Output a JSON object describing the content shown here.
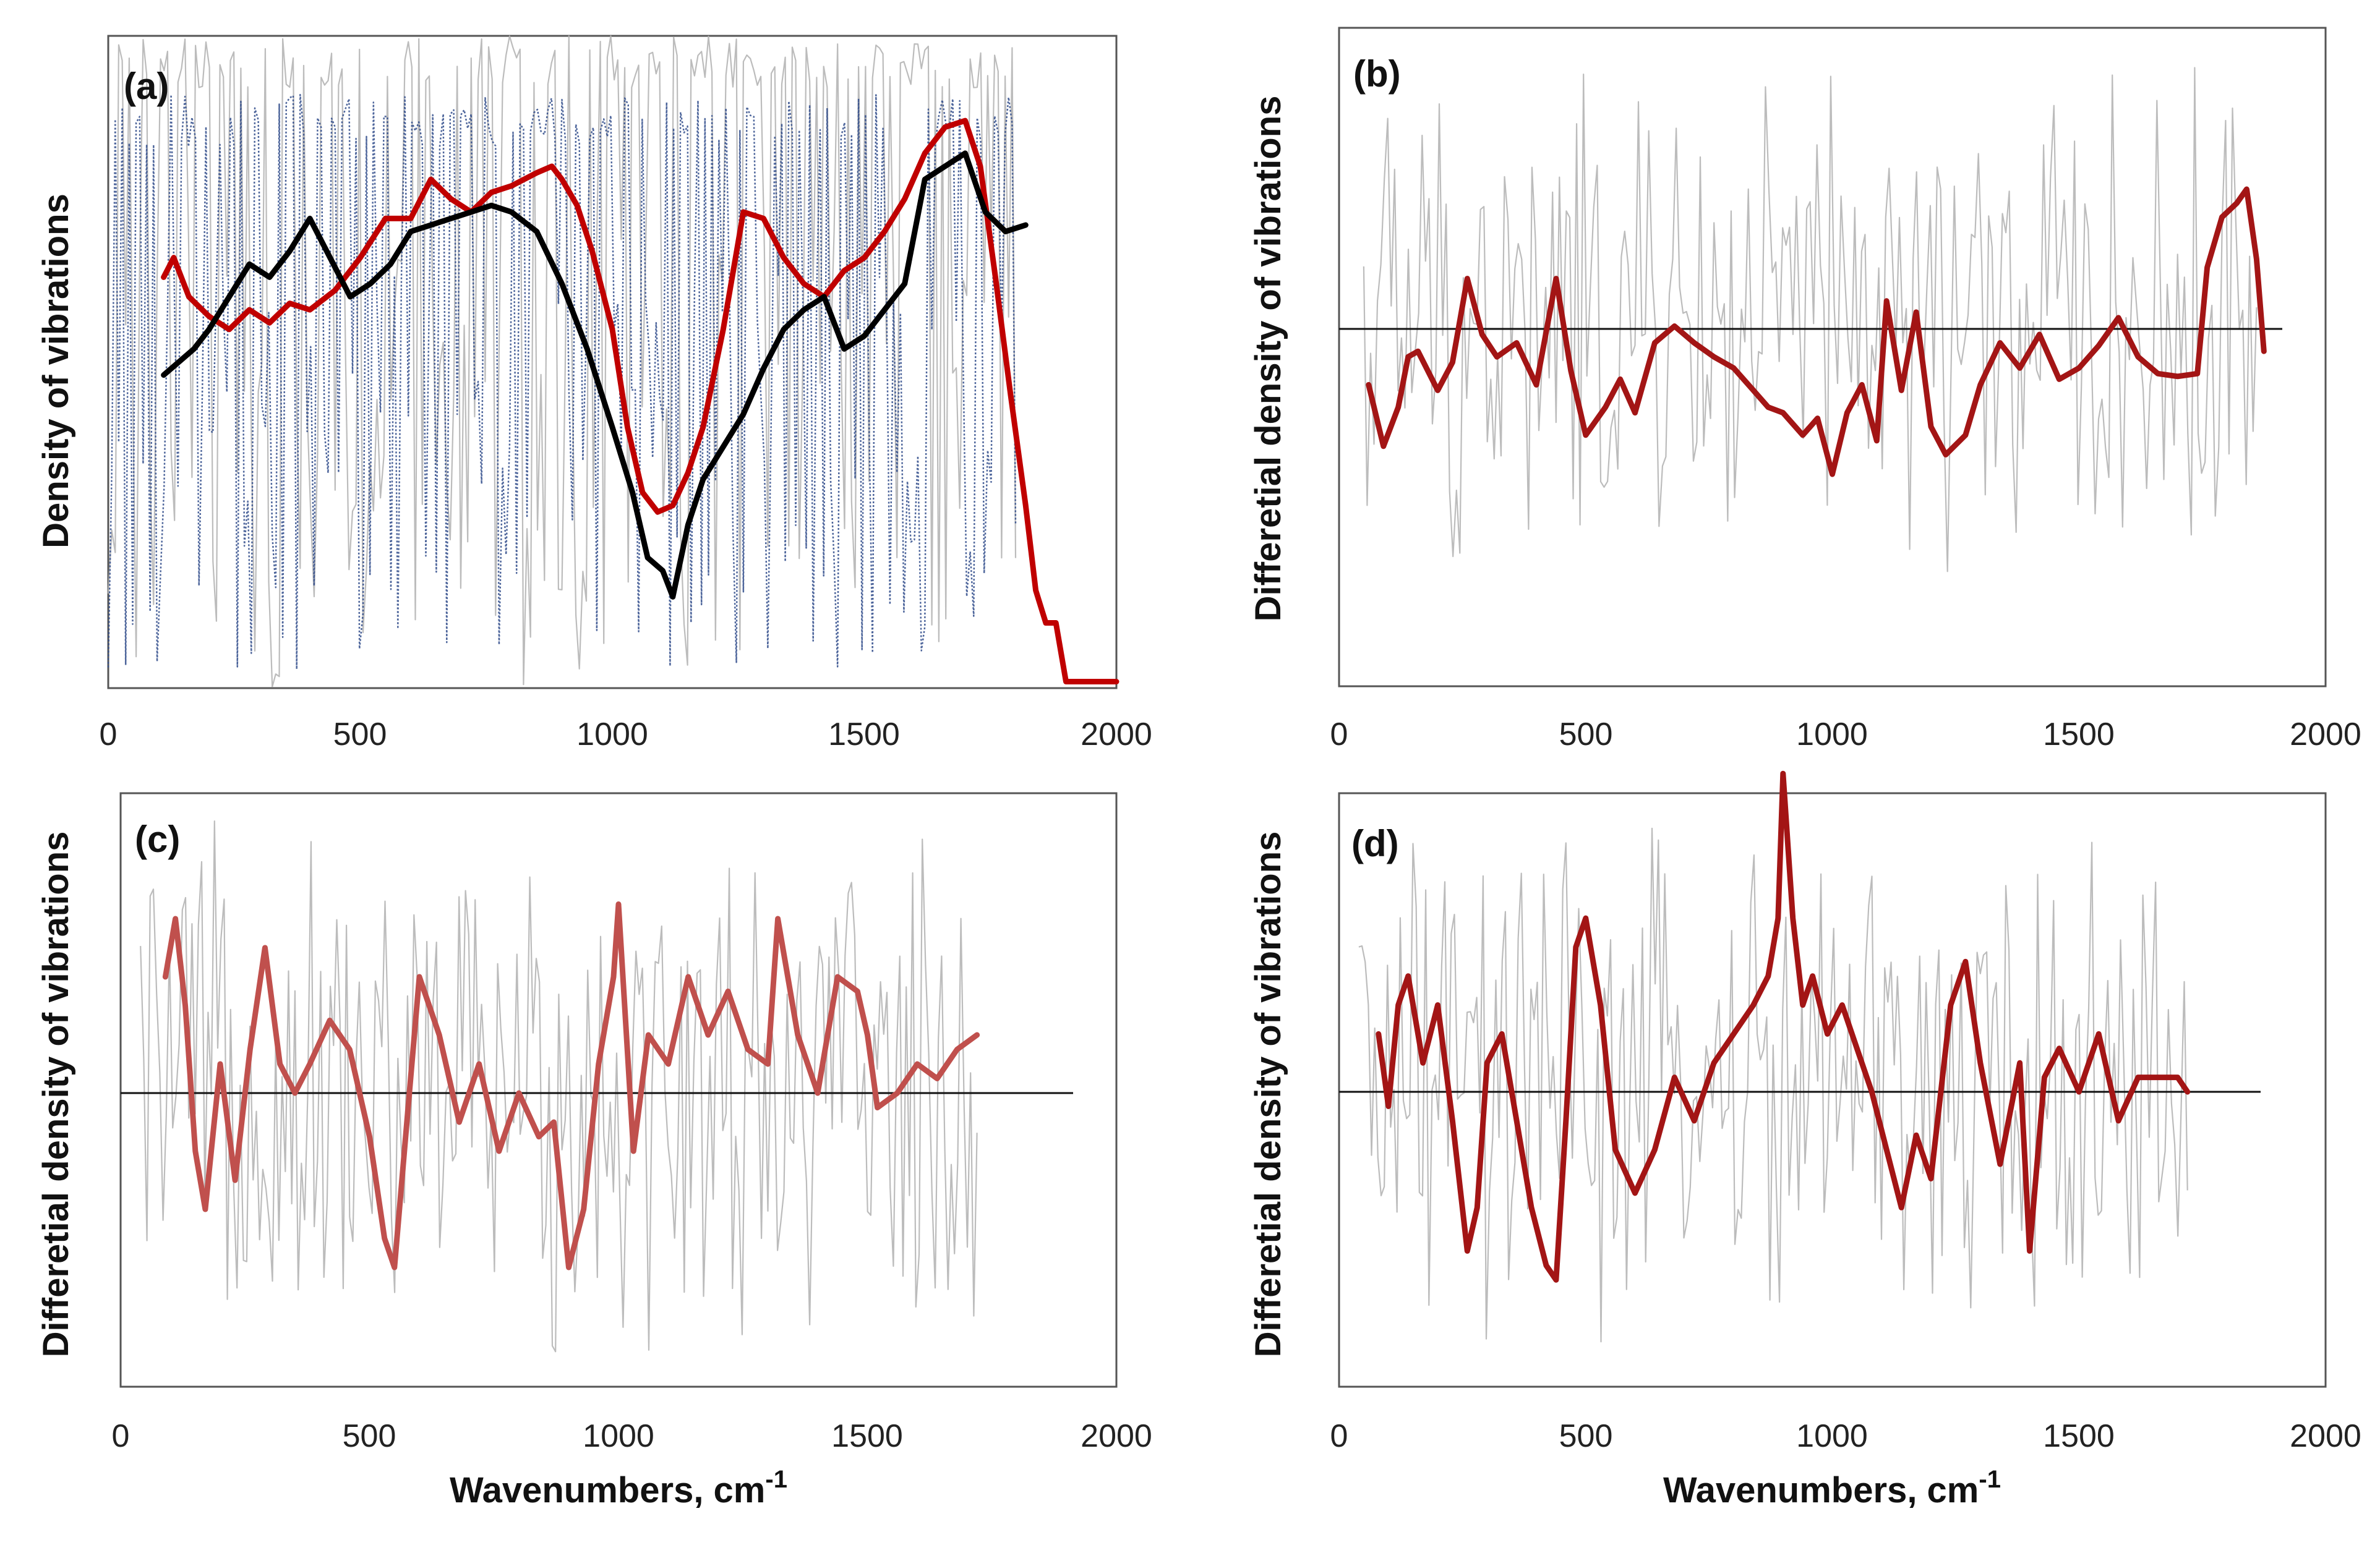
{
  "figure": {
    "panels": [
      {
        "id": "a",
        "label": "(a)",
        "ylabel": "Density of vibrations",
        "xlabel": ""
      },
      {
        "id": "b",
        "label": "(b)",
        "ylabel": "Differetial density of vibrations",
        "xlabel": ""
      },
      {
        "id": "c",
        "label": "(c)",
        "ylabel": "Differetial density of vibrations",
        "xlabel": "Wavenumbers, cm"
      },
      {
        "id": "d",
        "label": "(d)",
        "ylabel": "Differetial density of vibrations",
        "xlabel": "Wavenumbers, cm"
      }
    ],
    "xlabel_superscript": "-1",
    "x_ticks": [
      "0",
      "500",
      "1000",
      "1500",
      "2000"
    ]
  },
  "chart_data": [
    {
      "panel": "a",
      "type": "line",
      "title": "",
      "xlabel": "",
      "ylabel": "Density of vibrations",
      "xlim": [
        0,
        2000
      ],
      "ylim": [
        0,
        1
      ],
      "grid": false,
      "legend": "none",
      "background_spectra": [
        {
          "color": "#b5b5b5",
          "style": "solid",
          "x_range": [
            0,
            1800
          ],
          "y_range": [
            0,
            1
          ]
        },
        {
          "color": "#2e4a8a",
          "style": "dotted",
          "x_range": [
            0,
            1800
          ],
          "y_range": [
            0.02,
            0.91
          ]
        }
      ],
      "series": [
        {
          "color": "#c00000",
          "x": [
            110,
            130,
            160,
            200,
            240,
            280,
            320,
            360,
            400,
            450,
            500,
            550,
            600,
            640,
            680,
            720,
            760,
            800,
            850,
            880,
            900,
            930,
            960,
            1000,
            1030,
            1060,
            1090,
            1120,
            1150,
            1180,
            1220,
            1260,
            1300,
            1340,
            1380,
            1420,
            1460,
            1500,
            1540,
            1580,
            1620,
            1660,
            1700,
            1730,
            1760,
            1790,
            1820,
            1840,
            1860,
            1880,
            1900,
            2000
          ],
          "y": [
            0.63,
            0.66,
            0.6,
            0.57,
            0.55,
            0.58,
            0.56,
            0.59,
            0.58,
            0.61,
            0.66,
            0.72,
            0.72,
            0.78,
            0.75,
            0.73,
            0.76,
            0.77,
            0.79,
            0.8,
            0.78,
            0.74,
            0.67,
            0.55,
            0.4,
            0.3,
            0.27,
            0.28,
            0.33,
            0.4,
            0.55,
            0.73,
            0.72,
            0.66,
            0.62,
            0.6,
            0.64,
            0.66,
            0.7,
            0.75,
            0.82,
            0.86,
            0.87,
            0.8,
            0.63,
            0.45,
            0.28,
            0.15,
            0.1,
            0.1,
            0.01,
            0.01
          ]
        },
        {
          "color": "#000000",
          "x": [
            110,
            140,
            170,
            200,
            240,
            280,
            320,
            360,
            400,
            440,
            480,
            520,
            560,
            600,
            640,
            680,
            720,
            760,
            800,
            850,
            900,
            950,
            1000,
            1040,
            1070,
            1100,
            1120,
            1150,
            1180,
            1220,
            1260,
            1300,
            1340,
            1380,
            1420,
            1460,
            1500,
            1540,
            1580,
            1620,
            1660,
            1700,
            1740,
            1780,
            1820
          ],
          "y": [
            0.48,
            0.5,
            0.52,
            0.55,
            0.6,
            0.65,
            0.63,
            0.67,
            0.72,
            0.66,
            0.6,
            0.62,
            0.65,
            0.7,
            0.71,
            0.72,
            0.73,
            0.74,
            0.73,
            0.7,
            0.62,
            0.52,
            0.4,
            0.3,
            0.2,
            0.18,
            0.14,
            0.25,
            0.32,
            0.37,
            0.42,
            0.49,
            0.55,
            0.58,
            0.6,
            0.52,
            0.54,
            0.58,
            0.62,
            0.78,
            0.8,
            0.82,
            0.73,
            0.7,
            0.71
          ]
        }
      ]
    },
    {
      "panel": "b",
      "type": "line",
      "title": "",
      "xlabel": "",
      "ylabel": "Differetial density of vibrations",
      "xlim": [
        0,
        2000
      ],
      "ylim": [
        -1,
        1
      ],
      "zero_line": true,
      "grid": false,
      "legend": "none",
      "background_spectra": [
        {
          "color": "#b5b5b5",
          "style": "solid",
          "x_range": [
            50,
            1860
          ],
          "y_range": [
            -0.98,
            0.98
          ]
        }
      ],
      "series": [
        {
          "color": "#a31515",
          "x": [
            60,
            90,
            120,
            140,
            160,
            200,
            230,
            260,
            290,
            320,
            360,
            400,
            440,
            470,
            500,
            540,
            570,
            600,
            640,
            680,
            720,
            760,
            800,
            840,
            870,
            900,
            940,
            970,
            1000,
            1030,
            1060,
            1090,
            1110,
            1140,
            1170,
            1200,
            1230,
            1270,
            1300,
            1340,
            1380,
            1420,
            1460,
            1500,
            1540,
            1580,
            1620,
            1660,
            1700,
            1740,
            1760,
            1790,
            1820,
            1840,
            1860,
            1875
          ],
          "y": [
            -0.2,
            -0.42,
            -0.28,
            -0.1,
            -0.08,
            -0.22,
            -0.12,
            0.18,
            -0.02,
            -0.1,
            -0.05,
            -0.2,
            0.18,
            -0.15,
            -0.38,
            -0.28,
            -0.18,
            -0.3,
            -0.05,
            0.01,
            -0.05,
            -0.1,
            -0.14,
            -0.22,
            -0.28,
            -0.3,
            -0.38,
            -0.32,
            -0.52,
            -0.3,
            -0.2,
            -0.4,
            0.1,
            -0.22,
            0.06,
            -0.35,
            -0.45,
            -0.38,
            -0.2,
            -0.05,
            -0.14,
            -0.02,
            -0.18,
            -0.14,
            -0.06,
            0.04,
            -0.1,
            -0.16,
            -0.17,
            -0.16,
            0.22,
            0.4,
            0.45,
            0.5,
            0.25,
            -0.08
          ]
        }
      ]
    },
    {
      "panel": "c",
      "type": "line",
      "title": "",
      "xlabel": "Wavenumbers, cm-1",
      "ylabel": "Differetial density of vibrations",
      "xlim": [
        0,
        2000
      ],
      "ylim": [
        -1,
        1
      ],
      "zero_line": true,
      "grid": false,
      "legend": "none",
      "background_spectra": [
        {
          "color": "#b5b5b5",
          "style": "solid",
          "x_range": [
            40,
            1720
          ],
          "y_range": [
            -0.98,
            0.98
          ]
        }
      ],
      "series": [
        {
          "color": "#c0504d",
          "x": [
            90,
            110,
            130,
            150,
            170,
            200,
            230,
            260,
            290,
            320,
            350,
            380,
            420,
            460,
            500,
            530,
            550,
            570,
            600,
            640,
            680,
            720,
            760,
            800,
            840,
            870,
            900,
            930,
            960,
            990,
            1000,
            1030,
            1060,
            1100,
            1140,
            1180,
            1220,
            1260,
            1300,
            1320,
            1360,
            1400,
            1440,
            1480,
            1500,
            1520,
            1560,
            1600,
            1640,
            1680,
            1720
          ],
          "y": [
            0.4,
            0.6,
            0.3,
            -0.2,
            -0.4,
            0.1,
            -0.3,
            0.15,
            0.5,
            0.1,
            0.0,
            0.1,
            0.25,
            0.15,
            -0.15,
            -0.5,
            -0.6,
            -0.2,
            0.4,
            0.2,
            -0.1,
            0.1,
            -0.2,
            0.0,
            -0.15,
            -0.1,
            -0.6,
            -0.4,
            0.1,
            0.4,
            0.65,
            -0.2,
            0.2,
            0.1,
            0.4,
            0.2,
            0.35,
            0.15,
            0.1,
            0.6,
            0.2,
            0.0,
            0.4,
            0.35,
            0.2,
            -0.05,
            0.0,
            0.1,
            0.05,
            0.15,
            0.2
          ]
        }
      ]
    },
    {
      "panel": "d",
      "type": "line",
      "title": "",
      "xlabel": "Wavenumbers, cm-1",
      "ylabel": "Differetial density of vibrations",
      "xlim": [
        0,
        2000
      ],
      "ylim": [
        -1,
        1
      ],
      "zero_line": true,
      "grid": false,
      "legend": "none",
      "background_spectra": [
        {
          "color": "#b5b5b5",
          "style": "solid",
          "x_range": [
            40,
            1720
          ],
          "y_range": [
            -0.98,
            0.98
          ]
        }
      ],
      "series": [
        {
          "color": "#a31515",
          "x": [
            80,
            100,
            120,
            140,
            170,
            200,
            230,
            260,
            280,
            300,
            330,
            360,
            390,
            420,
            440,
            460,
            480,
            500,
            530,
            560,
            600,
            640,
            680,
            720,
            760,
            800,
            840,
            870,
            890,
            900,
            920,
            940,
            960,
            990,
            1020,
            1060,
            1080,
            1110,
            1140,
            1170,
            1200,
            1240,
            1270,
            1300,
            1340,
            1380,
            1400,
            1430,
            1460,
            1500,
            1540,
            1580,
            1620,
            1660,
            1700,
            1720
          ],
          "y": [
            0.2,
            -0.05,
            0.3,
            0.4,
            0.1,
            0.3,
            -0.1,
            -0.55,
            -0.4,
            0.1,
            0.2,
            -0.1,
            -0.4,
            -0.6,
            -0.65,
            -0.1,
            0.5,
            0.6,
            0.3,
            -0.2,
            -0.35,
            -0.2,
            0.05,
            -0.1,
            0.1,
            0.2,
            0.3,
            0.4,
            0.6,
            1.1,
            0.6,
            0.3,
            0.4,
            0.2,
            0.3,
            0.1,
            0.0,
            -0.2,
            -0.4,
            -0.15,
            -0.3,
            0.3,
            0.45,
            0.1,
            -0.25,
            0.1,
            -0.55,
            0.05,
            0.15,
            0.0,
            0.2,
            -0.1,
            0.05,
            0.05,
            0.05,
            0.0
          ]
        }
      ]
    }
  ]
}
